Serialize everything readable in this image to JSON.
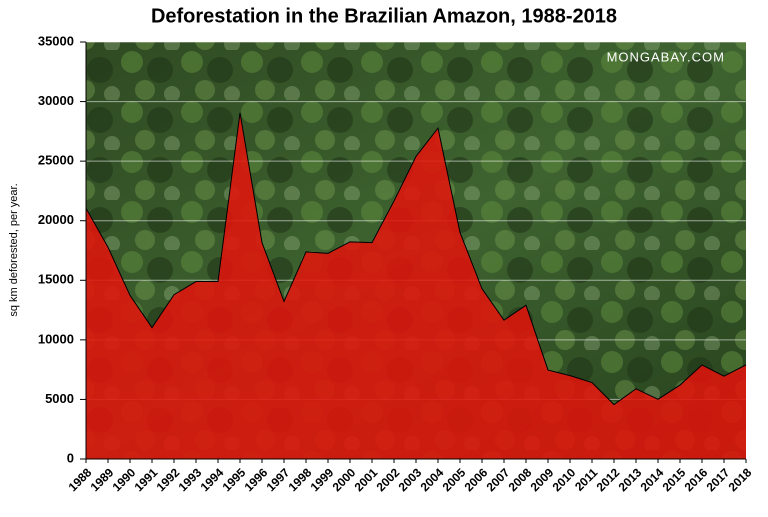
{
  "chart_data": {
    "type": "area",
    "title": "Deforestation in the Brazilian Amazon, 1988-2018",
    "watermark": "MONGABAY.COM",
    "y_label": "sq km deforested, per year.",
    "categories": [
      "1988",
      "1989",
      "1990",
      "1991",
      "1992",
      "1993",
      "1994",
      "1995",
      "1996",
      "1997",
      "1998",
      "1999",
      "2000",
      "2001",
      "2002",
      "2003",
      "2004",
      "2005",
      "2006",
      "2007",
      "2008",
      "2009",
      "2010",
      "2011",
      "2012",
      "2013",
      "2014",
      "2015",
      "2016",
      "2017",
      "2018"
    ],
    "values": [
      21050,
      17770,
      13730,
      11030,
      13786,
      14896,
      14896,
      29059,
      18161,
      13227,
      17383,
      17259,
      18226,
      18165,
      21651,
      25396,
      27772,
      19014,
      14286,
      11651,
      12911,
      7464,
      7000,
      6418,
      4571,
      5891,
      5012,
      6207,
      7893,
      6947,
      7900
    ],
    "color": "#e0140c",
    "ylim": [
      0,
      35000
    ],
    "yticks": [
      0,
      5000,
      10000,
      15000,
      20000,
      25000,
      30000,
      35000
    ],
    "grid": true
  }
}
